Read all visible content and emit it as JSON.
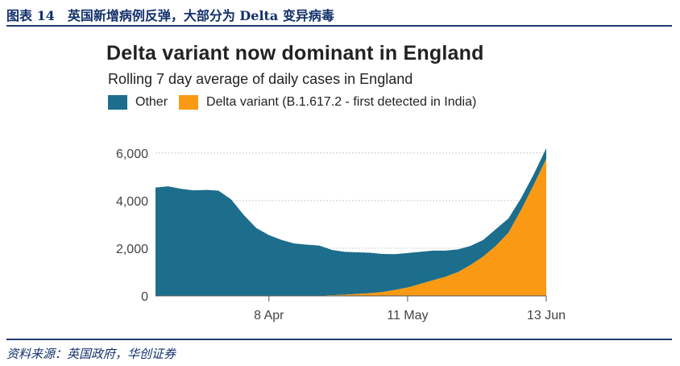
{
  "figure": {
    "caption": "图表 14　英国新增病例反弹，大部分为 Delta 变异病毒",
    "source": "资料来源：英国政府，华创证券"
  },
  "colors": {
    "other": "#1c6e8c",
    "delta": "#fa9a14",
    "rule": "#1f3b73",
    "caption_text": "#12306b"
  },
  "chart_data": {
    "type": "area",
    "title": "Delta variant now dominant in England",
    "subtitle": "Rolling 7 day average of daily cases in England",
    "stacked": true,
    "legend_position": "top-left",
    "grid": true,
    "x_ticks": [
      "8 Apr",
      "11 May",
      "13 Jun"
    ],
    "y_ticks": [
      0,
      2000,
      4000,
      6000
    ],
    "y_tick_labels": [
      "0",
      "2,000",
      "4,000",
      "6,000"
    ],
    "ylim": [
      0,
      6500
    ],
    "x": [
      "2021-03-12",
      "2021-03-15",
      "2021-03-18",
      "2021-03-21",
      "2021-03-24",
      "2021-03-27",
      "2021-03-30",
      "2021-04-02",
      "2021-04-05",
      "2021-04-08",
      "2021-04-11",
      "2021-04-14",
      "2021-04-17",
      "2021-04-20",
      "2021-04-23",
      "2021-04-26",
      "2021-04-29",
      "2021-05-02",
      "2021-05-05",
      "2021-05-08",
      "2021-05-11",
      "2021-05-14",
      "2021-05-17",
      "2021-05-20",
      "2021-05-23",
      "2021-05-26",
      "2021-05-29",
      "2021-06-01",
      "2021-06-04",
      "2021-06-07",
      "2021-06-10",
      "2021-06-13"
    ],
    "series": [
      {
        "name": "Other",
        "values": [
          4550,
          4600,
          4500,
          4430,
          4450,
          4420,
          4050,
          3400,
          2850,
          2550,
          2350,
          2200,
          2150,
          2100,
          1900,
          1800,
          1750,
          1700,
          1600,
          1500,
          1450,
          1350,
          1250,
          1100,
          950,
          800,
          700,
          700,
          600,
          500,
          450,
          450
        ]
      },
      {
        "name": "Delta variant (B.1.617.2 - first detected in India)",
        "values": [
          0,
          0,
          0,
          0,
          0,
          0,
          0,
          0,
          0,
          0,
          0,
          0,
          0,
          10,
          30,
          50,
          80,
          110,
          160,
          250,
          350,
          500,
          650,
          800,
          1000,
          1300,
          1650,
          2100,
          2650,
          3600,
          4650,
          5750
        ]
      }
    ]
  }
}
